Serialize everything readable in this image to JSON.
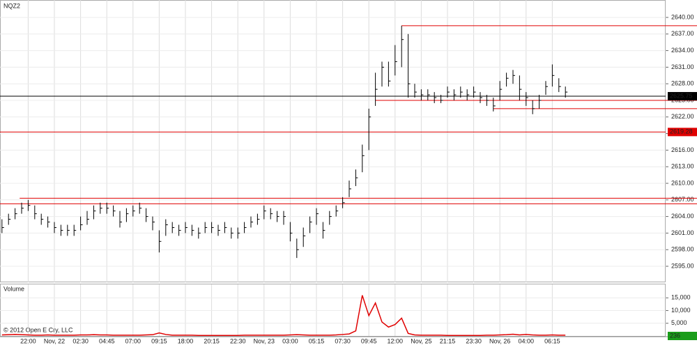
{
  "chart_data": [
    {
      "type": "hlc",
      "title": "NQZ2",
      "color": "#000000",
      "level_color": "#e00000",
      "xlim": [
        -0.3,
        101.3
      ],
      "xticks": [
        {
          "value": 4,
          "label": "22:00"
        },
        {
          "value": 8,
          "label": "Nov, 22"
        },
        {
          "value": 12,
          "label": "02:30"
        },
        {
          "value": 16,
          "label": "04:45"
        },
        {
          "value": 20,
          "label": "07:00"
        },
        {
          "value": 24,
          "label": "09:15"
        },
        {
          "value": 28,
          "label": "18:00"
        },
        {
          "value": 32,
          "label": "20:15"
        },
        {
          "value": 36,
          "label": "22:30"
        },
        {
          "value": 40,
          "label": "Nov, 23"
        },
        {
          "value": 44,
          "label": "03:00"
        },
        {
          "value": 48,
          "label": "05:15"
        },
        {
          "value": 52,
          "label": "07:30"
        },
        {
          "value": 56,
          "label": "09:45"
        },
        {
          "value": 60,
          "label": "12:00"
        },
        {
          "value": 64,
          "label": "Nov, 25"
        },
        {
          "value": 68,
          "label": "21:15"
        },
        {
          "value": 72,
          "label": "23:30"
        },
        {
          "value": 76,
          "label": "Nov, 26"
        },
        {
          "value": 80,
          "label": "04:00"
        },
        {
          "value": 84,
          "label": "06:15"
        }
      ],
      "ylim": [
        2592.1,
        2643.15
      ],
      "yticks": [
        {
          "value": 2595,
          "label": "2595.00"
        },
        {
          "value": 2598,
          "label": "2598.00"
        },
        {
          "value": 2601,
          "label": "2601.00"
        },
        {
          "value": 2604,
          "label": "2604.00"
        },
        {
          "value": 2607,
          "label": "2607.00"
        },
        {
          "value": 2610,
          "label": "2610.00"
        },
        {
          "value": 2613,
          "label": "2613.00"
        },
        {
          "value": 2616,
          "label": "2616.00"
        },
        {
          "value": 2619,
          "label": "2619.00"
        },
        {
          "value": 2622,
          "label": "2622.00"
        },
        {
          "value": 2625,
          "label": "2625.00"
        },
        {
          "value": 2628,
          "label": "2628.00"
        },
        {
          "value": 2631,
          "label": "2631.00"
        },
        {
          "value": 2634,
          "label": "2634.00"
        },
        {
          "value": 2637,
          "label": "2637.00"
        },
        {
          "value": 2640,
          "label": "2640.00"
        }
      ],
      "grid": true,
      "high": [
        2603.5,
        2604.5,
        2605.5,
        2606.5,
        2607,
        2606,
        2604.5,
        2604,
        2603,
        2602.5,
        2602.5,
        2602.5,
        2604,
        2605,
        2606,
        2606.5,
        2606.5,
        2606,
        2605,
        2605.5,
        2606,
        2606.5,
        2605.5,
        2604,
        2601.5,
        2603.5,
        2603,
        2602.5,
        2603,
        2602.5,
        2602,
        2603,
        2603,
        2602.5,
        2603,
        2602,
        2602,
        2603,
        2604,
        2604.5,
        2606,
        2605.5,
        2605,
        2605,
        2603,
        2600,
        2602,
        2604,
        2605.5,
        2603,
        2605,
        2606,
        2607.5,
        2610.5,
        2612.5,
        2617,
        2623.5,
        2630,
        2632,
        2632,
        2635,
        2638.5,
        2637,
        2628,
        2627,
        2627,
        2626.5,
        2626,
        2627.5,
        2627,
        2627.5,
        2627,
        2627.5,
        2626.5,
        2626,
        2625.5,
        2628.5,
        2630,
        2630.5,
        2629.5,
        2626.5,
        2625,
        2626,
        2628.5,
        2631.5,
        2629,
        2627.5
      ],
      "low": [
        2601,
        2602.5,
        2603.5,
        2604.5,
        2605,
        2603.5,
        2602.5,
        2602,
        2601,
        2600.5,
        2600.5,
        2600.5,
        2601.5,
        2602.5,
        2603.5,
        2604.5,
        2604.5,
        2604,
        2602,
        2603,
        2604,
        2604.5,
        2603,
        2601.5,
        2597.5,
        2600.5,
        2601,
        2600.5,
        2601,
        2600.5,
        2600,
        2601,
        2601,
        2600.5,
        2601,
        2600,
        2600,
        2601,
        2602,
        2602.5,
        2603.5,
        2603.5,
        2603,
        2602.5,
        2599.5,
        2596.5,
        2598.5,
        2601,
        2602.5,
        2600,
        2602.5,
        2604,
        2605.5,
        2607.5,
        2609.5,
        2612,
        2616,
        2624,
        2627.5,
        2627.5,
        2629.5,
        2631,
        2625.5,
        2625.5,
        2625,
        2625,
        2624.5,
        2624.5,
        2625.5,
        2625,
        2625.5,
        2625,
        2625.5,
        2624.5,
        2624,
        2623,
        2625,
        2627.5,
        2628,
        2625,
        2624,
        2622.5,
        2623.5,
        2626,
        2627.5,
        2626.5,
        2625.5
      ],
      "close": [
        2602,
        2603.5,
        2604.5,
        2605.5,
        2606,
        2604.5,
        2603.5,
        2603,
        2602,
        2601.5,
        2601.5,
        2601.5,
        2602.5,
        2603.5,
        2605,
        2605.5,
        2605.5,
        2605,
        2603,
        2604.5,
        2605,
        2605.5,
        2604,
        2603,
        2599.5,
        2602.5,
        2602,
        2601.5,
        2602,
        2601.5,
        2601,
        2602,
        2602,
        2601.5,
        2602,
        2601,
        2601,
        2602,
        2603,
        2603.5,
        2605,
        2604.5,
        2604,
        2604,
        2601,
        2598,
        2600.5,
        2603,
        2604.5,
        2601.5,
        2604,
        2605,
        2606.5,
        2609,
        2611,
        2615,
        2622,
        2627,
        2631,
        2628.5,
        2632,
        2636,
        2628,
        2626.5,
        2626,
        2626,
        2625.5,
        2625,
        2626.5,
        2626,
        2626.5,
        2626,
        2626.5,
        2625.5,
        2625,
        2624,
        2627,
        2629,
        2629.5,
        2627,
        2625.5,
        2623.5,
        2625,
        2627.5,
        2629.5,
        2627.5,
        2626.5
      ],
      "levels": [
        {
          "value": 2638.5,
          "start": 61
        },
        {
          "value": 2625,
          "start": 57
        },
        {
          "value": 2623.5,
          "start": 75
        },
        {
          "value": 2607.3,
          "start": 2.7
        },
        {
          "value": 2606.3,
          "start": -0.3
        }
      ],
      "alert": 2619.28,
      "alert_color": "#e00000",
      "last": 2625.75,
      "last_color": "#000000"
    },
    {
      "type": "line",
      "title": "Volume",
      "copyright": "© 2012 Open E Cry, LLC",
      "color": "#e00000",
      "xlim": [
        -0.3,
        101.3
      ],
      "ylim": [
        0,
        20300
      ],
      "yticks": [
        {
          "value": 5000,
          "label": "5,000"
        },
        {
          "value": 10000,
          "label": "10,000"
        },
        {
          "value": 15000,
          "label": "15,000"
        }
      ],
      "values": [
        400,
        500,
        600,
        500,
        400,
        300,
        300,
        400,
        300,
        300,
        300,
        300,
        400,
        400,
        500,
        400,
        400,
        300,
        300,
        300,
        300,
        300,
        400,
        500,
        1200,
        600,
        300,
        300,
        300,
        300,
        200,
        200,
        200,
        200,
        200,
        200,
        200,
        300,
        300,
        300,
        300,
        300,
        300,
        300,
        400,
        500,
        400,
        300,
        300,
        300,
        300,
        400,
        600,
        800,
        2000,
        16000,
        8000,
        13000,
        5500,
        3500,
        4500,
        7000,
        1000,
        400,
        300,
        300,
        300,
        300,
        200,
        200,
        200,
        200,
        200,
        200,
        300,
        300,
        400,
        500,
        700,
        400,
        600,
        400,
        300,
        300,
        400,
        300,
        300
      ],
      "last": 236,
      "last_color": "#1a9c1a"
    }
  ]
}
